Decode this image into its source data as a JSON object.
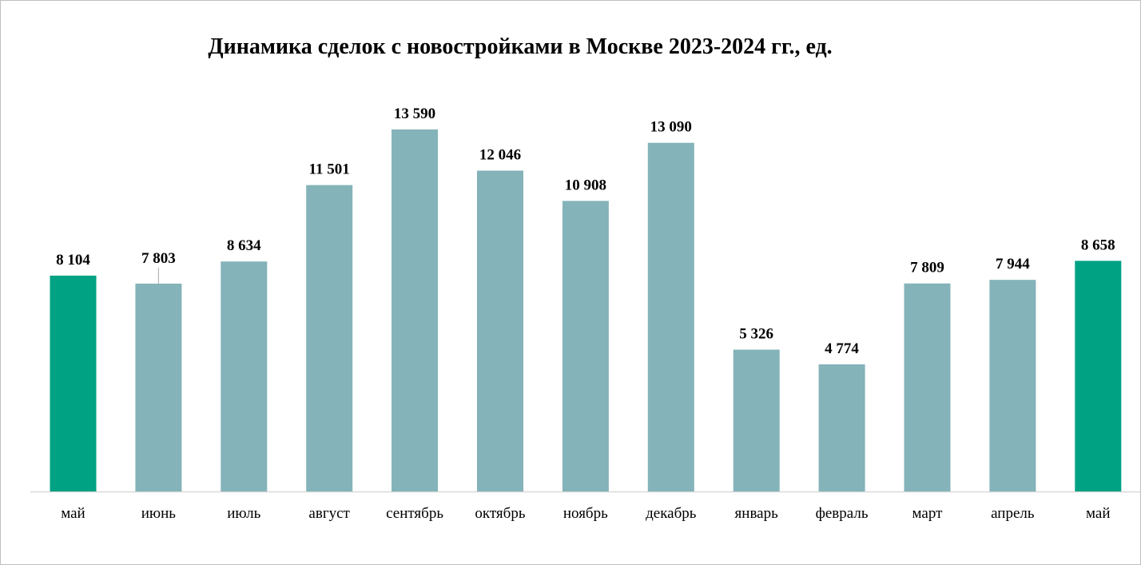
{
  "chart_data": {
    "type": "bar",
    "title": "Динамика сделок с новостройками в Москве 2023-2024 гг., ед.",
    "xlabel": "",
    "ylabel": "",
    "categories": [
      "май",
      "июнь",
      "июль",
      "август",
      "сентябрь",
      "октябрь",
      "ноябрь",
      "декабрь",
      "январь",
      "февраль",
      "март",
      "апрель",
      "май"
    ],
    "values": [
      8104,
      7803,
      8634,
      11501,
      13590,
      12046,
      10908,
      13090,
      5326,
      4774,
      7809,
      7944,
      8658
    ],
    "value_labels": [
      "8 104",
      "7 803",
      "8 634",
      "11 501",
      "13 590",
      "12 046",
      "10 908",
      "13 090",
      "5 326",
      "4 774",
      "7 809",
      "7 944",
      "8 658"
    ],
    "highlighted": [
      0,
      12
    ],
    "ylim": [
      0,
      15000
    ],
    "grid": false,
    "legend": "none",
    "colors": {
      "bar": "#84b3b9",
      "highlight": "#00a284",
      "axis": "#d9d9d9",
      "leader": "#a6a6a6"
    }
  }
}
